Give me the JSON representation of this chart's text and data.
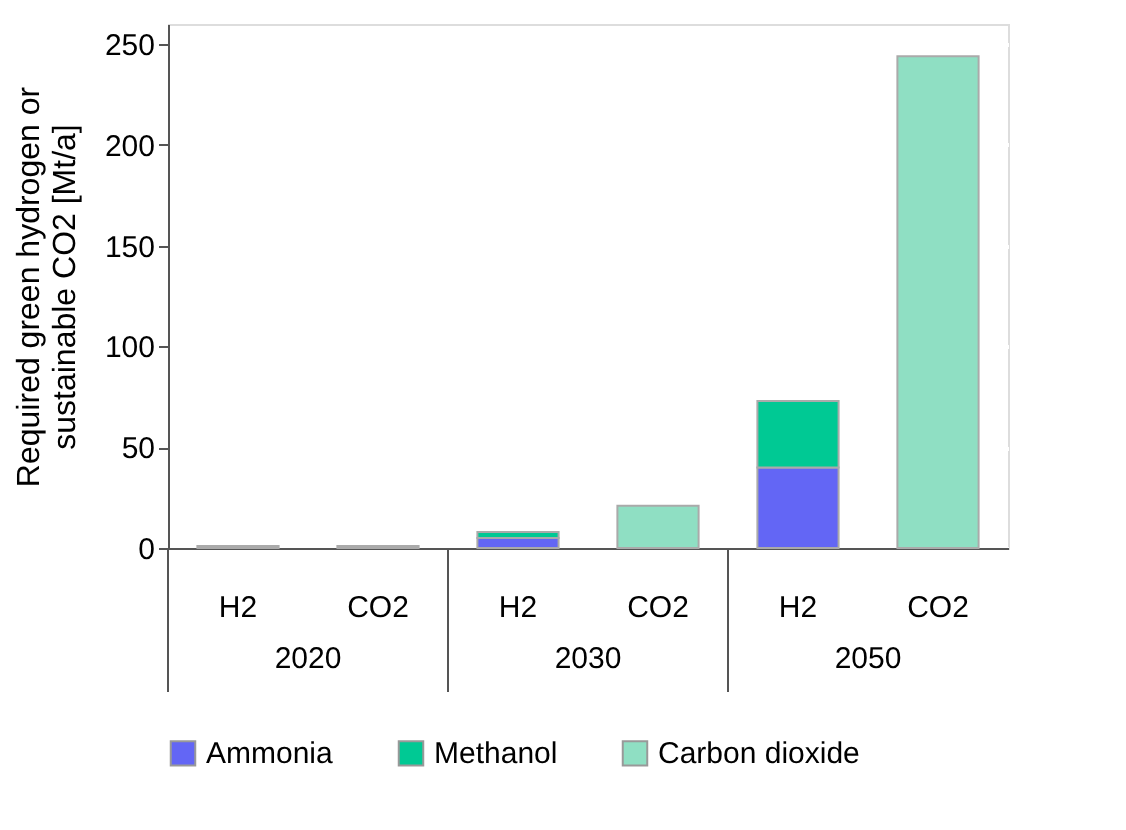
{
  "chart_data": {
    "type": "bar",
    "stacked": true,
    "ylabel": "Required green hydrogen or sustainable CO2 [Mt/a]",
    "categories": [
      "H2",
      "CO2",
      "H2",
      "CO2",
      "H2",
      "CO2"
    ],
    "annotations": [
      "2020",
      "2030",
      "2050"
    ],
    "series": [
      {
        "name": "Ammonia",
        "color": "#6366f5",
        "values": [
          1,
          null,
          5,
          null,
          40,
          null
        ]
      },
      {
        "name": "Methanol",
        "color": "#00c994",
        "values": [
          null,
          null,
          3,
          null,
          33,
          null
        ]
      },
      {
        "name": "Carbon dioxide",
        "color": "#8fdfc3",
        "values": [
          null,
          1,
          null,
          21,
          null,
          244
        ]
      }
    ],
    "ylim": [
      0,
      260
    ],
    "yticks": [
      0,
      50,
      100,
      150,
      200,
      250
    ],
    "grid": "y",
    "legend": "bottom"
  }
}
